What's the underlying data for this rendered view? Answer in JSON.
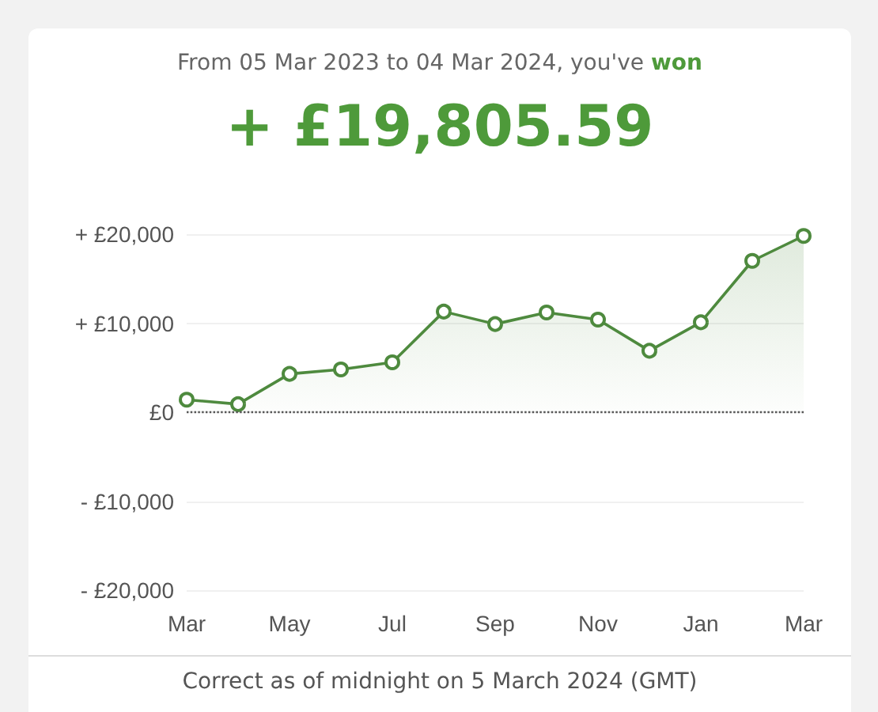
{
  "chart_data": {
    "type": "area",
    "subtitle": "From 05 Mar 2023 to 04 Mar 2024, you've won",
    "title": "+ £19,805.59",
    "annotations": [
      "Correct as of midnight on 5 March 2024 (GMT)"
    ],
    "categories": [
      "Mar",
      null,
      "May",
      null,
      "Jul",
      null,
      "Sep",
      null,
      "Nov",
      null,
      "Jan",
      null,
      "Mar"
    ],
    "series": [
      {
        "color": "#4e8a3e",
        "values": [
          1400,
          900,
          4300,
          4800,
          5600,
          11300,
          9900,
          11200,
          10400,
          6900,
          10100,
          17000,
          19800
        ]
      }
    ],
    "ylim": [
      -20000,
      20000
    ],
    "yticks": [
      {
        "value": -20000,
        "label": "- £20,000"
      },
      {
        "value": -10000,
        "label": "- £10,000"
      },
      {
        "value": 0,
        "label": "£0"
      },
      {
        "value": 10000,
        "label": "+ £10,000"
      },
      {
        "value": 20000,
        "label": "+ £20,000"
      }
    ],
    "ref_lines": [
      {
        "axis": "y",
        "value": 0,
        "line_style": "dotted",
        "color": "#555555"
      }
    ],
    "grid": "y",
    "marker": "circle",
    "line_style": "solid"
  }
}
